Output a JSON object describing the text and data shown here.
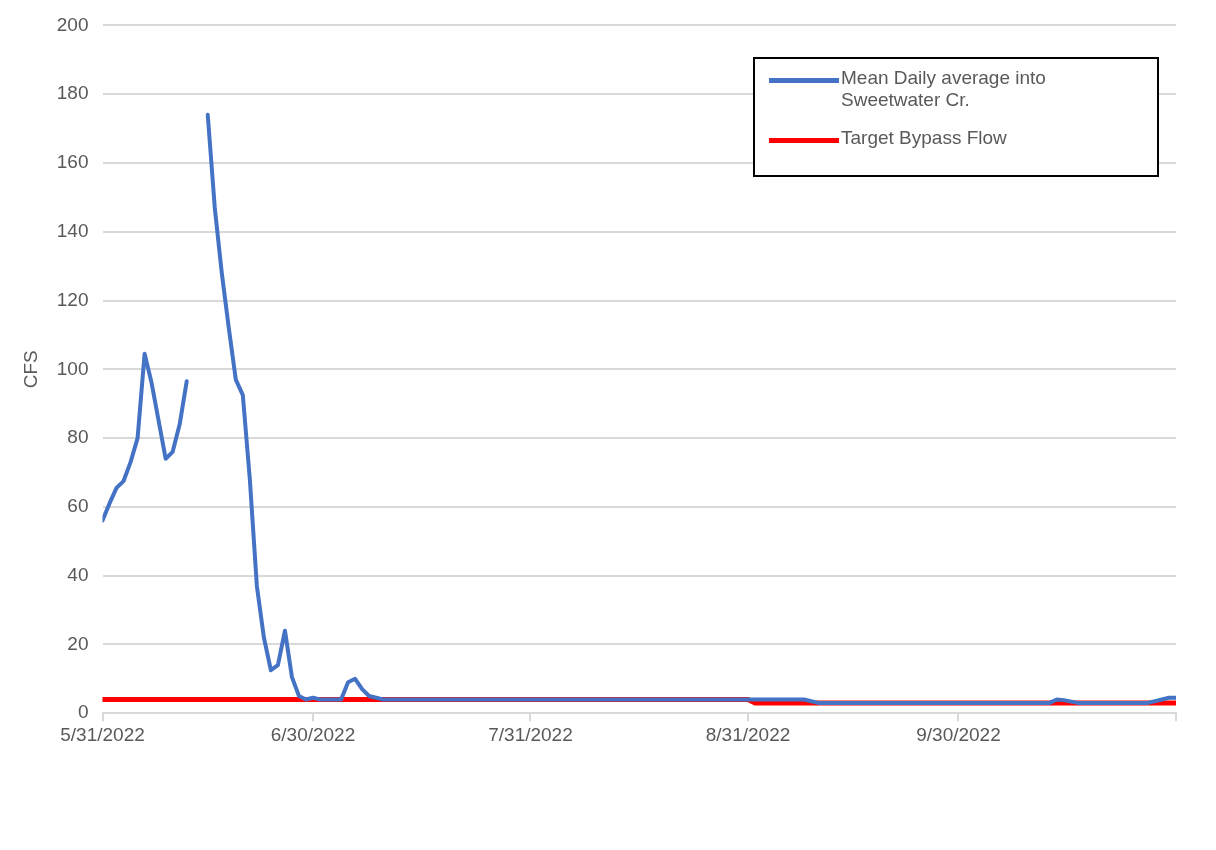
{
  "chart_data": {
    "type": "line",
    "ylabel": "CFS",
    "xlim": [
      "2022-05-31",
      "2022-10-31"
    ],
    "xticks": [
      {
        "value": "2022-05-31",
        "label": "5/31/2022"
      },
      {
        "value": "2022-06-30",
        "label": "6/30/2022"
      },
      {
        "value": "2022-07-31",
        "label": "7/31/2022"
      },
      {
        "value": "2022-08-31",
        "label": "8/31/2022"
      },
      {
        "value": "2022-09-30",
        "label": "9/30/2022"
      },
      {
        "value": "2022-10-31",
        "label": null
      }
    ],
    "ylim": [
      0,
      200
    ],
    "yticks": [
      0,
      20,
      40,
      60,
      80,
      100,
      120,
      140,
      160,
      180,
      200
    ],
    "grid": "y",
    "legend": "top right",
    "marker": "none",
    "line_style": "solid",
    "series": [
      {
        "name": "Mean Daily average into Sweetwater Cr.",
        "color": "#4472c4",
        "x": [
          "2022-05-31",
          "2022-06-01",
          "2022-06-02",
          "2022-06-03",
          "2022-06-04",
          "2022-06-05",
          "2022-06-06",
          "2022-06-07",
          "2022-06-08",
          "2022-06-09",
          "2022-06-10",
          "2022-06-11",
          "2022-06-12",
          "2022-06-13",
          "2022-06-15",
          "2022-06-16",
          "2022-06-17",
          "2022-06-18",
          "2022-06-19",
          "2022-06-20",
          "2022-06-21",
          "2022-06-22",
          "2022-06-23",
          "2022-06-24",
          "2022-06-25",
          "2022-06-26",
          "2022-06-27",
          "2022-06-28",
          "2022-06-29",
          "2022-06-30",
          "2022-07-01",
          "2022-07-04",
          "2022-07-05",
          "2022-07-06",
          "2022-07-07",
          "2022-07-08",
          "2022-07-09",
          "2022-07-10",
          "2022-08-31",
          "2022-09-08",
          "2022-09-10",
          "2022-10-13",
          "2022-10-14",
          "2022-10-15",
          "2022-10-17",
          "2022-10-27",
          "2022-10-29",
          "2022-10-30",
          "2022-10-31"
        ],
        "values": [
          56,
          61,
          65.5,
          67.5,
          73,
          80,
          104.5,
          96,
          85,
          74,
          76,
          84,
          96.5,
          null,
          174,
          147,
          128,
          112,
          97,
          92.5,
          68,
          37,
          22,
          12.5,
          14,
          24,
          10.5,
          5,
          4,
          4.5,
          4,
          4,
          9,
          10,
          7,
          5,
          4.5,
          4,
          4,
          4,
          3,
          3,
          4,
          3.8,
          3,
          3,
          4,
          4.5,
          4.5
        ]
      },
      {
        "name": "Target Bypass Flow",
        "color": "#ff0000",
        "x": [
          "2022-05-31",
          "2022-08-31",
          "2022-09-01",
          "2022-10-31"
        ],
        "values": [
          4,
          4,
          3,
          3
        ]
      }
    ]
  }
}
